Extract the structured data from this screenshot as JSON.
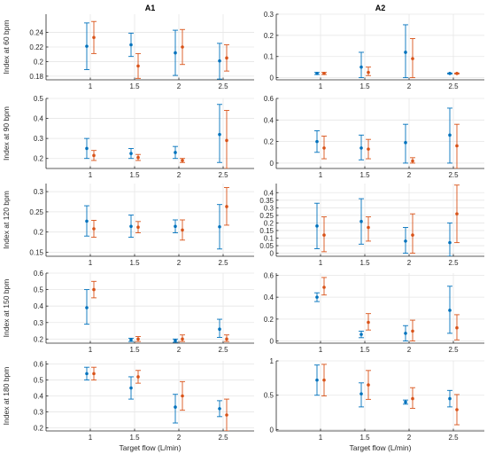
{
  "colors": {
    "series1": "#0072BD",
    "series2": "#D95319",
    "grid": "#e6e6e6",
    "axis": "#262626"
  },
  "chart_data": [
    {
      "type": "scatter",
      "title": "A1",
      "ylabel": "Index at 60 bpm",
      "xlabel": "",
      "xlim": [
        0.5,
        2.85
      ],
      "ylim": [
        0.175,
        0.265
      ],
      "xticks": [
        1,
        1.5,
        2,
        2.5
      ],
      "xtick_labels": [
        "1",
        "1.5",
        "2",
        "2.5"
      ],
      "yticks": [
        0.18,
        0.2,
        0.22,
        0.24
      ],
      "ytick_labels": [
        "0.18",
        "0.2",
        "0.22",
        "0.24"
      ],
      "series": [
        {
          "x": [
            1,
            1.5,
            2,
            2.5
          ],
          "y": [
            0.221,
            0.223,
            0.212,
            0.201
          ],
          "lo": [
            0.189,
            0.207,
            0.181,
            0.176
          ],
          "hi": [
            0.253,
            0.239,
            0.243,
            0.225
          ]
        },
        {
          "x": [
            1,
            1.5,
            2,
            2.5
          ],
          "y": [
            0.233,
            0.194,
            0.22,
            0.205
          ],
          "lo": [
            0.211,
            0.177,
            0.196,
            0.187
          ],
          "hi": [
            0.255,
            0.211,
            0.244,
            0.223
          ]
        }
      ]
    },
    {
      "type": "scatter",
      "title": "A2",
      "ylabel": "",
      "xlabel": "",
      "xlim": [
        0.5,
        2.85
      ],
      "ylim": [
        -0.01,
        0.3
      ],
      "xticks": [
        1,
        1.5,
        2,
        2.5
      ],
      "xtick_labels": [
        "1",
        "1.5",
        "2",
        "2.5"
      ],
      "yticks": [
        0,
        0.1,
        0.2,
        0.3
      ],
      "ytick_labels": [
        "0",
        "0.1",
        "0.2",
        "0.3"
      ],
      "series": [
        {
          "x": [
            1,
            1.5,
            2,
            2.5
          ],
          "y": [
            0.02,
            0.05,
            0.12,
            0.02
          ],
          "lo": [
            0.015,
            0.0,
            0.0,
            0.018
          ],
          "hi": [
            0.025,
            0.12,
            0.25,
            0.022
          ]
        },
        {
          "x": [
            1,
            1.5,
            2,
            2.5
          ],
          "y": [
            0.02,
            0.025,
            0.09,
            0.02
          ],
          "lo": [
            0.015,
            0.01,
            0.0,
            0.018
          ],
          "hi": [
            0.025,
            0.05,
            0.185,
            0.022
          ]
        }
      ]
    },
    {
      "type": "scatter",
      "title": "",
      "ylabel": "Index at 90 bpm",
      "xlabel": "",
      "xlim": [
        0.5,
        2.85
      ],
      "ylim": [
        0.15,
        0.5
      ],
      "xticks": [
        1,
        1.5,
        2,
        2.5
      ],
      "xtick_labels": [
        "1",
        "1.5",
        "2",
        "2.5"
      ],
      "yticks": [
        0.2,
        0.3,
        0.4,
        0.5
      ],
      "ytick_labels": [
        "0.2",
        "0.3",
        "0.4",
        "0.5"
      ],
      "series": [
        {
          "x": [
            1,
            1.5,
            2,
            2.5
          ],
          "y": [
            0.25,
            0.225,
            0.23,
            0.32
          ],
          "lo": [
            0.2,
            0.2,
            0.2,
            0.18
          ],
          "hi": [
            0.3,
            0.25,
            0.26,
            0.47
          ]
        },
        {
          "x": [
            1,
            1.5,
            2,
            2.5
          ],
          "y": [
            0.215,
            0.205,
            0.19,
            0.29
          ],
          "lo": [
            0.19,
            0.19,
            0.18,
            0.15
          ],
          "hi": [
            0.24,
            0.22,
            0.2,
            0.44
          ]
        }
      ]
    },
    {
      "type": "scatter",
      "title": "",
      "ylabel": "",
      "xlabel": "",
      "xlim": [
        0.5,
        2.85
      ],
      "ylim": [
        -0.05,
        0.6
      ],
      "xticks": [
        1,
        1.5,
        2,
        2.5
      ],
      "xtick_labels": [
        "1",
        "1.5",
        "2",
        "2.5"
      ],
      "yticks": [
        0,
        0.2,
        0.4,
        0.6
      ],
      "ytick_labels": [
        "0",
        "0.2",
        "0.4",
        "0.6"
      ],
      "series": [
        {
          "x": [
            1,
            1.5,
            2,
            2.5
          ],
          "y": [
            0.2,
            0.14,
            0.19,
            0.26
          ],
          "lo": [
            0.1,
            0.03,
            0.0,
            0.0
          ],
          "hi": [
            0.3,
            0.26,
            0.36,
            0.51
          ]
        },
        {
          "x": [
            1,
            1.5,
            2,
            2.5
          ],
          "y": [
            0.14,
            0.13,
            0.02,
            0.16
          ],
          "lo": [
            0.04,
            0.04,
            0.0,
            -0.05
          ],
          "hi": [
            0.25,
            0.22,
            0.05,
            0.36
          ]
        }
      ]
    },
    {
      "type": "scatter",
      "title": "",
      "ylabel": "Index at 120 bpm",
      "xlabel": "",
      "xlim": [
        0.5,
        2.85
      ],
      "ylim": [
        0.14,
        0.32
      ],
      "xticks": [
        1,
        1.5,
        2,
        2.5
      ],
      "xtick_labels": [
        "1",
        "1.5",
        "2",
        "2.5"
      ],
      "yticks": [
        0.15,
        0.2,
        0.25,
        0.3
      ],
      "ytick_labels": [
        "0.15",
        "0.2",
        "0.25",
        "0.3"
      ],
      "series": [
        {
          "x": [
            1,
            1.5,
            2,
            2.5
          ],
          "y": [
            0.227,
            0.214,
            0.214,
            0.213
          ],
          "lo": [
            0.19,
            0.187,
            0.198,
            0.158
          ],
          "hi": [
            0.265,
            0.242,
            0.23,
            0.268
          ]
        },
        {
          "x": [
            1,
            1.5,
            2,
            2.5
          ],
          "y": [
            0.208,
            0.212,
            0.205,
            0.263
          ],
          "lo": [
            0.187,
            0.198,
            0.18,
            0.217
          ],
          "hi": [
            0.229,
            0.226,
            0.23,
            0.31
          ]
        }
      ]
    },
    {
      "type": "scatter",
      "title": "",
      "ylabel": "",
      "xlabel": "",
      "xlim": [
        0.5,
        2.85
      ],
      "ylim": [
        -0.02,
        0.46
      ],
      "xticks": [
        1,
        1.5,
        2,
        2.5
      ],
      "xtick_labels": [
        "1",
        "1.5",
        "2",
        "2.5"
      ],
      "yticks": [
        0,
        0.05,
        0.1,
        0.15,
        0.2,
        0.25,
        0.3,
        0.35,
        0.4
      ],
      "ytick_labels": [
        "0",
        "0.05",
        "0.1",
        "0.15",
        "0.2",
        "0.25",
        "0.3",
        "0.35",
        "0.4"
      ],
      "series": [
        {
          "x": [
            1,
            1.5,
            2,
            2.5
          ],
          "y": [
            0.18,
            0.21,
            0.08,
            0.07
          ],
          "lo": [
            0.03,
            0.06,
            0.0,
            -0.02
          ],
          "hi": [
            0.33,
            0.36,
            0.17,
            0.2
          ]
        },
        {
          "x": [
            1,
            1.5,
            2,
            2.5
          ],
          "y": [
            0.12,
            0.17,
            0.12,
            0.26
          ],
          "lo": [
            0.01,
            0.08,
            0.0,
            0.07
          ],
          "hi": [
            0.24,
            0.24,
            0.26,
            0.45
          ]
        }
      ]
    },
    {
      "type": "scatter",
      "title": "",
      "ylabel": "Index at 150 bpm",
      "xlabel": "",
      "xlim": [
        0.5,
        2.85
      ],
      "ylim": [
        0.175,
        0.6
      ],
      "xticks": [
        1,
        1.5,
        2,
        2.5
      ],
      "xtick_labels": [
        "1",
        "1.5",
        "2",
        "2.5"
      ],
      "yticks": [
        0.2,
        0.3,
        0.4,
        0.5,
        0.6
      ],
      "ytick_labels": [
        "0.2",
        "0.3",
        "0.4",
        "0.5",
        "0.6"
      ],
      "series": [
        {
          "x": [
            1,
            1.5,
            2,
            2.5
          ],
          "y": [
            0.39,
            0.195,
            0.19,
            0.26
          ],
          "lo": [
            0.29,
            0.185,
            0.18,
            0.21
          ],
          "hi": [
            0.5,
            0.205,
            0.2,
            0.32
          ]
        },
        {
          "x": [
            1,
            1.5,
            2,
            2.5
          ],
          "y": [
            0.5,
            0.2,
            0.2,
            0.2
          ],
          "lo": [
            0.45,
            0.185,
            0.185,
            0.185
          ],
          "hi": [
            0.55,
            0.215,
            0.225,
            0.225
          ]
        }
      ]
    },
    {
      "type": "scatter",
      "title": "",
      "ylabel": "",
      "xlabel": "",
      "xlim": [
        0.5,
        2.85
      ],
      "ylim": [
        -0.02,
        0.62
      ],
      "xticks": [
        1,
        1.5,
        2,
        2.5
      ],
      "xtick_labels": [
        "1",
        "1.5",
        "2",
        "2.5"
      ],
      "yticks": [
        0,
        0.2,
        0.4,
        0.6
      ],
      "ytick_labels": [
        "0",
        "0.2",
        "0.4",
        "0.6"
      ],
      "series": [
        {
          "x": [
            1,
            1.5,
            2,
            2.5
          ],
          "y": [
            0.4,
            0.06,
            0.07,
            0.28
          ],
          "lo": [
            0.36,
            0.03,
            0.0,
            0.07
          ],
          "hi": [
            0.44,
            0.09,
            0.14,
            0.5
          ]
        },
        {
          "x": [
            1,
            1.5,
            2,
            2.5
          ],
          "y": [
            0.49,
            0.17,
            0.09,
            0.12
          ],
          "lo": [
            0.42,
            0.1,
            0.0,
            0.01
          ],
          "hi": [
            0.58,
            0.25,
            0.19,
            0.24
          ]
        }
      ]
    },
    {
      "type": "scatter",
      "title": "",
      "ylabel": "Index at 180 bpm",
      "xlabel": "Target flow (L/min)",
      "xlim": [
        0.5,
        2.85
      ],
      "ylim": [
        0.18,
        0.62
      ],
      "xticks": [
        1,
        1.5,
        2,
        2.5
      ],
      "xtick_labels": [
        "1",
        "1.5",
        "2",
        "2.5"
      ],
      "yticks": [
        0.2,
        0.3,
        0.4,
        0.5,
        0.6
      ],
      "ytick_labels": [
        "0.2",
        "0.3",
        "0.4",
        "0.5",
        "0.6"
      ],
      "series": [
        {
          "x": [
            1,
            1.5,
            2,
            2.5
          ],
          "y": [
            0.54,
            0.45,
            0.33,
            0.32
          ],
          "lo": [
            0.5,
            0.38,
            0.23,
            0.27
          ],
          "hi": [
            0.58,
            0.52,
            0.41,
            0.37
          ]
        },
        {
          "x": [
            1,
            1.5,
            2,
            2.5
          ],
          "y": [
            0.54,
            0.52,
            0.4,
            0.28
          ],
          "lo": [
            0.5,
            0.48,
            0.31,
            0.18
          ],
          "hi": [
            0.58,
            0.56,
            0.49,
            0.38
          ]
        }
      ]
    },
    {
      "type": "scatter",
      "title": "",
      "ylabel": "",
      "xlabel": "Target flow (L/min)",
      "xlim": [
        0.5,
        2.85
      ],
      "ylim": [
        -0.02,
        1.0
      ],
      "xticks": [
        1,
        1.5,
        2,
        2.5
      ],
      "xtick_labels": [
        "1",
        "1.5",
        "2",
        "2.5"
      ],
      "yticks": [
        0,
        0.5,
        1
      ],
      "ytick_labels": [
        "0",
        "0.5",
        "1"
      ],
      "series": [
        {
          "x": [
            1,
            1.5,
            2,
            2.5
          ],
          "y": [
            0.72,
            0.52,
            0.4,
            0.45
          ],
          "lo": [
            0.5,
            0.33,
            0.37,
            0.33
          ],
          "hi": [
            0.94,
            0.68,
            0.43,
            0.57
          ]
        },
        {
          "x": [
            1,
            1.5,
            2,
            2.5
          ],
          "y": [
            0.72,
            0.65,
            0.45,
            0.29
          ],
          "lo": [
            0.49,
            0.44,
            0.31,
            0.07
          ],
          "hi": [
            0.95,
            0.86,
            0.61,
            0.51
          ]
        }
      ]
    }
  ]
}
